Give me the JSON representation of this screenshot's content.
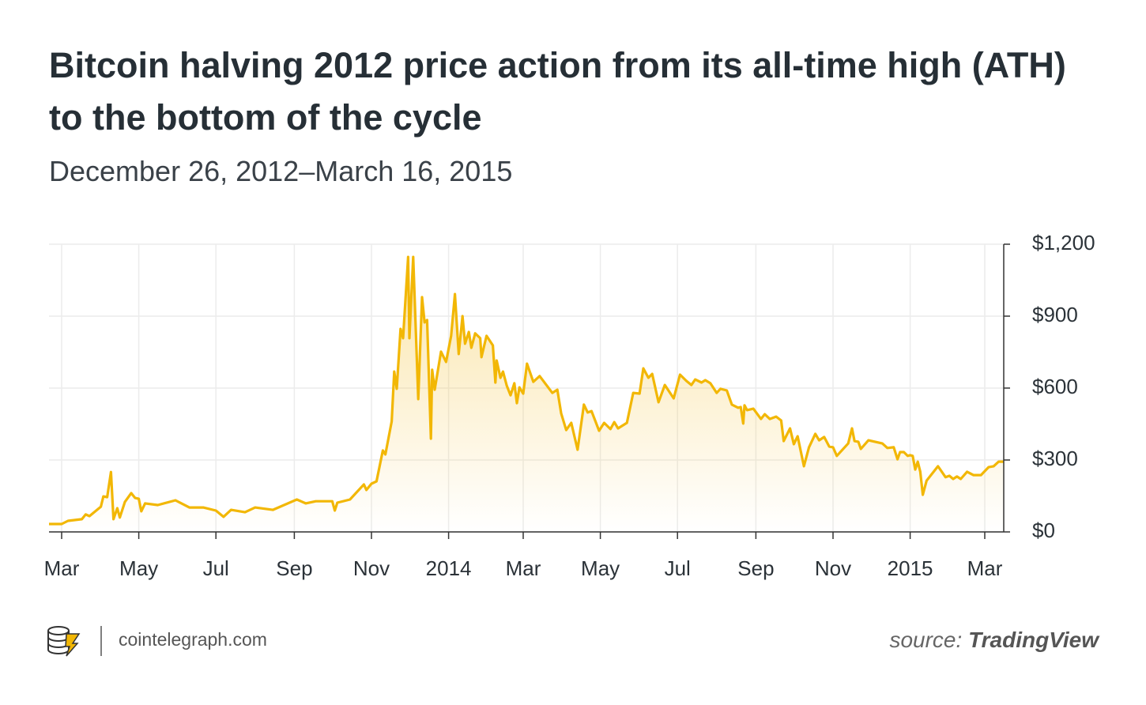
{
  "chart_data": {
    "type": "line",
    "title": "Bitcoin halving 2012 price action from its all-time high (ATH) to the bottom of the cycle",
    "subtitle": "December 26, 2012–March 16, 2015",
    "xlim": [
      "2013-02-19",
      "2015-03-16"
    ],
    "xticks": [
      {
        "value": "2013-03-01",
        "label": "Mar"
      },
      {
        "value": "2013-05-01",
        "label": "May"
      },
      {
        "value": "2013-07-01",
        "label": "Jul"
      },
      {
        "value": "2013-09-01",
        "label": "Sep"
      },
      {
        "value": "2013-11-01",
        "label": "Nov"
      },
      {
        "value": "2014-01-01",
        "label": "2014"
      },
      {
        "value": "2014-03-01",
        "label": "Mar"
      },
      {
        "value": "2014-05-01",
        "label": "May"
      },
      {
        "value": "2014-07-01",
        "label": "Jul"
      },
      {
        "value": "2014-09-01",
        "label": "Sep"
      },
      {
        "value": "2014-11-01",
        "label": "Nov"
      },
      {
        "value": "2015-01-01",
        "label": "2015"
      },
      {
        "value": "2015-03-01",
        "label": "Mar"
      }
    ],
    "ylim": [
      0,
      1200
    ],
    "yticks": [
      {
        "value": 0,
        "label": "$0"
      },
      {
        "value": 300,
        "label": "$300"
      },
      {
        "value": 600,
        "label": "$600"
      },
      {
        "value": 900,
        "label": "$900"
      },
      {
        "value": 1200,
        "label": "$1,200"
      }
    ],
    "grid": true,
    "color": "#f2b705",
    "x": [
      "2013-02-19",
      "2013-03-01",
      "2013-03-06",
      "2013-03-17",
      "2013-03-20",
      "2013-03-23",
      "2013-04-01",
      "2013-04-03",
      "2013-04-06",
      "2013-04-09",
      "2013-04-11",
      "2013-04-14",
      "2013-04-16",
      "2013-04-20",
      "2013-04-25",
      "2013-04-28",
      "2013-05-01",
      "2013-05-03",
      "2013-05-06",
      "2013-05-16",
      "2013-05-30",
      "2013-06-10",
      "2013-06-21",
      "2013-07-01",
      "2013-07-07",
      "2013-07-13",
      "2013-07-24",
      "2013-08-01",
      "2013-08-15",
      "2013-09-03",
      "2013-09-10",
      "2013-09-18",
      "2013-10-01",
      "2013-10-03",
      "2013-10-05",
      "2013-10-15",
      "2013-10-26",
      "2013-10-28",
      "2013-11-01",
      "2013-11-05",
      "2013-11-10",
      "2013-11-12",
      "2013-11-17",
      "2013-11-19",
      "2013-11-21",
      "2013-11-24",
      "2013-11-26",
      "2013-11-30",
      "2013-12-01",
      "2013-12-04",
      "2013-12-08",
      "2013-12-11",
      "2013-12-13",
      "2013-12-15",
      "2013-12-18",
      "2013-12-19",
      "2013-12-21",
      "2013-12-26",
      "2013-12-30",
      "2014-01-03",
      "2014-01-06",
      "2014-01-09",
      "2014-01-12",
      "2014-01-14",
      "2014-01-17",
      "2014-01-19",
      "2014-01-22",
      "2014-01-26",
      "2014-01-27",
      "2014-01-31",
      "2014-02-05",
      "2014-02-07",
      "2014-02-08",
      "2014-02-11",
      "2014-02-13",
      "2014-02-16",
      "2014-02-19",
      "2014-02-22",
      "2014-02-24",
      "2014-02-26",
      "2014-03-01",
      "2014-03-04",
      "2014-03-09",
      "2014-03-14",
      "2014-03-24",
      "2014-03-28",
      "2014-03-31",
      "2014-04-04",
      "2014-04-08",
      "2014-04-13",
      "2014-04-18",
      "2014-04-21",
      "2014-04-24",
      "2014-04-30",
      "2014-05-04",
      "2014-05-09",
      "2014-05-12",
      "2014-05-15",
      "2014-05-22",
      "2014-05-27",
      "2014-06-01",
      "2014-06-04",
      "2014-06-08",
      "2014-06-11",
      "2014-06-16",
      "2014-06-21",
      "2014-06-28",
      "2014-07-03",
      "2014-07-08",
      "2014-07-12",
      "2014-07-15",
      "2014-07-20",
      "2014-07-23",
      "2014-07-27",
      "2014-08-01",
      "2014-08-04",
      "2014-08-09",
      "2014-08-13",
      "2014-08-18",
      "2014-08-20",
      "2014-08-22",
      "2014-08-23",
      "2014-08-25",
      "2014-08-30",
      "2014-09-05",
      "2014-09-08",
      "2014-09-12",
      "2014-09-17",
      "2014-09-21",
      "2014-09-23",
      "2014-09-28",
      "2014-10-01",
      "2014-10-04",
      "2014-10-09",
      "2014-10-13",
      "2014-10-18",
      "2014-10-21",
      "2014-10-25",
      "2014-10-29",
      "2014-11-01",
      "2014-11-04",
      "2014-11-13",
      "2014-11-16",
      "2014-11-18",
      "2014-11-21",
      "2014-11-23",
      "2014-11-29",
      "2014-12-10",
      "2014-12-14",
      "2014-12-19",
      "2014-12-22",
      "2014-12-24",
      "2014-12-27",
      "2014-12-30",
      "2015-01-01",
      "2015-01-03",
      "2015-01-05",
      "2015-01-07",
      "2015-01-09",
      "2015-01-11",
      "2015-01-14",
      "2015-01-23",
      "2015-01-29",
      "2015-02-01",
      "2015-02-04",
      "2015-02-07",
      "2015-02-10",
      "2015-02-15",
      "2015-02-20",
      "2015-02-26",
      "2015-03-04",
      "2015-03-08",
      "2015-03-12",
      "2015-03-16"
    ],
    "values": [
      33,
      33,
      46,
      53,
      73,
      66,
      105,
      148,
      145,
      250,
      53,
      99,
      60,
      125,
      162,
      142,
      138,
      86,
      119,
      112,
      132,
      102,
      102,
      89,
      63,
      92,
      82,
      102,
      92,
      135,
      119,
      128,
      128,
      89,
      122,
      135,
      198,
      175,
      201,
      211,
      340,
      323,
      461,
      669,
      597,
      847,
      808,
      1147,
      808,
      1147,
      554,
      979,
      874,
      884,
      389,
      676,
      593,
      752,
      709,
      818,
      992,
      742,
      900,
      785,
      834,
      768,
      828,
      808,
      729,
      818,
      778,
      623,
      715,
      643,
      669,
      610,
      570,
      620,
      537,
      603,
      577,
      702,
      626,
      650,
      580,
      593,
      495,
      425,
      455,
      343,
      531,
      498,
      504,
      422,
      455,
      429,
      458,
      432,
      455,
      580,
      577,
      682,
      643,
      659,
      541,
      613,
      557,
      656,
      630,
      613,
      636,
      623,
      633,
      620,
      580,
      597,
      590,
      531,
      518,
      521,
      452,
      528,
      508,
      514,
      471,
      491,
      471,
      481,
      465,
      379,
      432,
      366,
      399,
      274,
      353,
      409,
      382,
      396,
      356,
      353,
      317,
      369,
      432,
      379,
      376,
      346,
      382,
      369,
      350,
      353,
      303,
      333,
      333,
      317,
      320,
      317,
      260,
      293,
      251,
      155,
      214,
      274,
      228,
      234,
      221,
      231,
      221,
      251,
      237,
      237,
      270,
      274,
      293,
      293
    ]
  },
  "footer": {
    "site": "cointelegraph.com",
    "source_label": "source:",
    "source": "TradingView"
  }
}
